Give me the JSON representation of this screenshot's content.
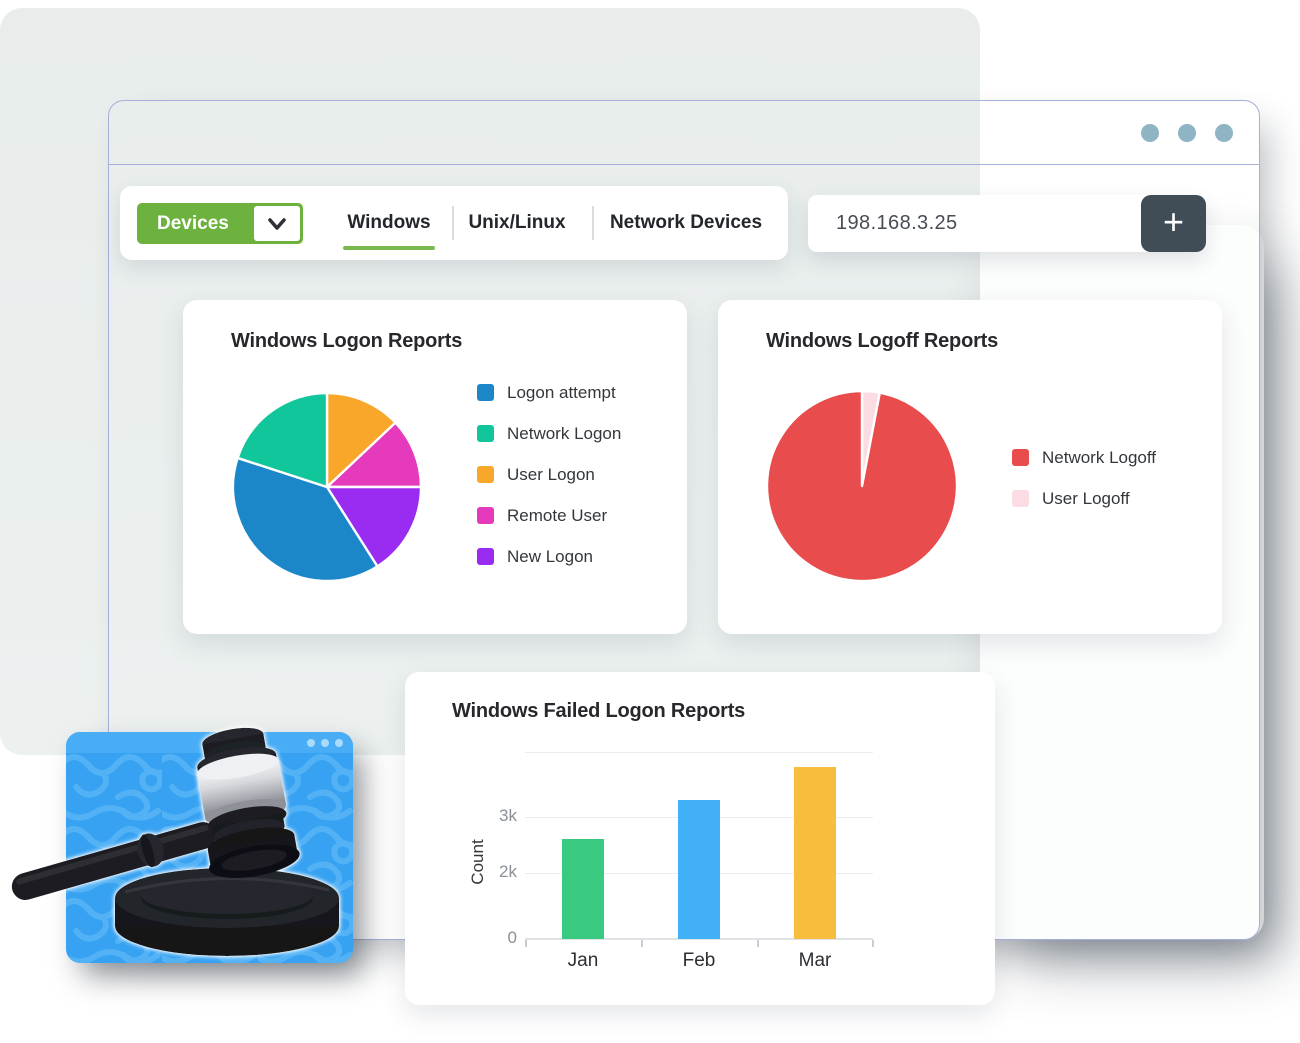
{
  "browser": {
    "menu_dots": 3
  },
  "toolbar": {
    "devices_label": "Devices",
    "tabs": [
      "Windows",
      "Unix/Linux",
      "Network Devices"
    ],
    "active_tab": "Windows"
  },
  "device_input": {
    "value": "198.168.3.25",
    "add_label": "+"
  },
  "chart_data": [
    {
      "type": "pie",
      "title": "Windows Logon Reports",
      "legend_position": "right",
      "units": "percent",
      "series": [
        {
          "name": "Logon attempt",
          "value": 39,
          "color": "#1b87c9"
        },
        {
          "name": "Network Logon",
          "value": 20,
          "color": "#12c69b"
        },
        {
          "name": "User Logon",
          "value": 13,
          "color": "#f8a72b"
        },
        {
          "name": "Remote User",
          "value": 12,
          "color": "#e53abc"
        },
        {
          "name": "New Logon",
          "value": 16,
          "color": "#9a2bf0"
        }
      ],
      "draw_order": [
        2,
        3,
        4,
        0,
        1
      ],
      "start_angle_deg": 0
    },
    {
      "type": "pie",
      "title": "Windows Logoff Reports",
      "legend_position": "right",
      "units": "percent",
      "series": [
        {
          "name": "Network Logoff",
          "value": 97,
          "color": "#e84c4c"
        },
        {
          "name": "User Logoff",
          "value": 3,
          "color": "#fbdce3"
        }
      ],
      "draw_order": [
        1,
        0
      ],
      "start_angle_deg": 0
    },
    {
      "type": "bar",
      "title": "Windows Failed Logon Reports",
      "categories": [
        "Jan",
        "Feb",
        "Mar"
      ],
      "values": [
        2600,
        3300,
        3900
      ],
      "colors": [
        "#39c981",
        "#41b0f6",
        "#f9bd3e"
      ],
      "xlabel": "",
      "ylabel": "Count",
      "yticks": [
        {
          "value": 0,
          "label": "0"
        },
        {
          "value": 2000,
          "label": "2k"
        },
        {
          "value": 3000,
          "label": "3k"
        }
      ],
      "ylim": [
        0,
        4100
      ],
      "grid": true
    }
  ],
  "colors": {
    "accent_green": "#6db23e",
    "tab_underline": "#79b84a",
    "add_button_charcoal": "#404c56",
    "window_border": "#a7aeda",
    "panel_gray": "#e9edec",
    "frame_dots": "#8fb4c4",
    "media_window_blue": "#37a2f2",
    "logoff_red": "#e84c4c"
  }
}
